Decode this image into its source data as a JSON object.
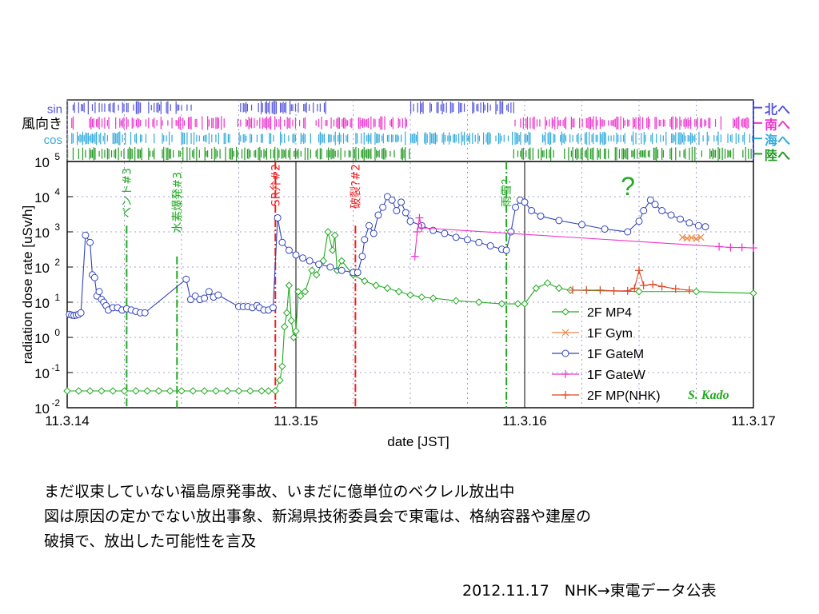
{
  "chart_data": {
    "type": "scatter",
    "xlabel": "date [JST]",
    "ylabel": "radiation dose rate [uSv/h]",
    "xlim": [
      "2011-03-14",
      "2011-03-17"
    ],
    "x_ticks": [
      "11.3.14",
      "11.3.15",
      "11.3.16",
      "11.3.17"
    ],
    "y_log": true,
    "ylim": [
      0.01,
      100000
    ],
    "y_ticks": [
      {
        "base": "10",
        "exp": "-2"
      },
      {
        "base": "10",
        "exp": "-1"
      },
      {
        "base": "10",
        "exp": "0"
      },
      {
        "base": "10",
        "exp": "1"
      },
      {
        "base": "10",
        "exp": "2"
      },
      {
        "base": "10",
        "exp": "3"
      },
      {
        "base": "10",
        "exp": "4"
      },
      {
        "base": "10",
        "exp": "5"
      }
    ],
    "legend_position": "bottom-right",
    "signature": "S. Kado",
    "question_mark": "?",
    "wind_panel": {
      "left_label": "風向き",
      "rows": [
        {
          "name": "sin",
          "right_label": "北へ",
          "color": "#5555dd"
        },
        {
          "name": "",
          "right_label": "南へ",
          "color": "#ee33cc"
        },
        {
          "name": "cos",
          "right_label": "海へ",
          "color": "#33aadd"
        },
        {
          "name": "",
          "right_label": "陸へ",
          "color": "#229922"
        }
      ]
    },
    "events": [
      {
        "label": "ベント#3",
        "day": 0.26,
        "color": "#22aa22"
      },
      {
        "label": "水素爆発#3",
        "day": 0.48,
        "color": "#22aa22"
      },
      {
        "label": "SR弁#2",
        "day": 0.91,
        "color": "#ee2222"
      },
      {
        "label": "破裂?#2",
        "day": 1.26,
        "color": "#ee2222"
      },
      {
        "label": "雨雪？",
        "day": 1.92,
        "color": "#22aa22"
      }
    ],
    "series": [
      {
        "name": "2F MP4",
        "color": "#22aa22",
        "marker": "diamond",
        "points": [
          [
            0.0,
            0.03
          ],
          [
            0.05,
            0.03
          ],
          [
            0.1,
            0.03
          ],
          [
            0.15,
            0.03
          ],
          [
            0.2,
            0.03
          ],
          [
            0.25,
            0.03
          ],
          [
            0.3,
            0.03
          ],
          [
            0.35,
            0.03
          ],
          [
            0.4,
            0.03
          ],
          [
            0.45,
            0.03
          ],
          [
            0.5,
            0.03
          ],
          [
            0.55,
            0.03
          ],
          [
            0.6,
            0.03
          ],
          [
            0.65,
            0.03
          ],
          [
            0.7,
            0.03
          ],
          [
            0.75,
            0.03
          ],
          [
            0.8,
            0.03
          ],
          [
            0.85,
            0.03
          ],
          [
            0.88,
            0.03
          ],
          [
            0.91,
            0.03
          ],
          [
            0.93,
            0.06
          ],
          [
            0.94,
            0.15
          ],
          [
            0.95,
            2
          ],
          [
            0.96,
            5
          ],
          [
            0.97,
            30
          ],
          [
            0.98,
            3
          ],
          [
            0.99,
            1
          ],
          [
            1.0,
            1.5
          ],
          [
            1.01,
            20
          ],
          [
            1.02,
            15
          ],
          [
            1.04,
            20
          ],
          [
            1.07,
            80
          ],
          [
            1.09,
            60
          ],
          [
            1.12,
            150
          ],
          [
            1.14,
            1000
          ],
          [
            1.16,
            300
          ],
          [
            1.17,
            800
          ],
          [
            1.18,
            80
          ],
          [
            1.2,
            150
          ],
          [
            1.25,
            60
          ],
          [
            1.3,
            40
          ],
          [
            1.35,
            30
          ],
          [
            1.4,
            25
          ],
          [
            1.45,
            20
          ],
          [
            1.5,
            16
          ],
          [
            1.55,
            14
          ],
          [
            1.6,
            13
          ],
          [
            1.7,
            11
          ],
          [
            1.8,
            10
          ],
          [
            1.9,
            9
          ],
          [
            1.97,
            9
          ],
          [
            2.0,
            9
          ],
          [
            2.05,
            25
          ],
          [
            2.1,
            35
          ],
          [
            2.15,
            25
          ],
          [
            2.2,
            22
          ],
          [
            2.5,
            20
          ],
          [
            2.75,
            20
          ],
          [
            3.0,
            18
          ]
        ]
      },
      {
        "name": "1F Gym",
        "color": "#ee8844",
        "marker": "x",
        "points": [
          [
            2.69,
            700
          ],
          [
            2.71,
            650
          ],
          [
            2.73,
            680
          ],
          [
            2.75,
            640
          ],
          [
            2.77,
            700
          ]
        ]
      },
      {
        "name": "1F GateM",
        "color": "#3344bb",
        "marker": "circle",
        "points": [
          [
            0.01,
            4.5
          ],
          [
            0.02,
            4.3
          ],
          [
            0.03,
            4.2
          ],
          [
            0.04,
            4.3
          ],
          [
            0.05,
            4.5
          ],
          [
            0.06,
            5
          ],
          [
            0.08,
            800
          ],
          [
            0.1,
            500
          ],
          [
            0.11,
            60
          ],
          [
            0.12,
            50
          ],
          [
            0.13,
            15
          ],
          [
            0.14,
            20
          ],
          [
            0.15,
            12
          ],
          [
            0.16,
            10
          ],
          [
            0.17,
            8
          ],
          [
            0.18,
            6
          ],
          [
            0.2,
            7
          ],
          [
            0.22,
            7
          ],
          [
            0.24,
            6
          ],
          [
            0.26,
            6.5
          ],
          [
            0.28,
            6
          ],
          [
            0.3,
            5.5
          ],
          [
            0.32,
            5
          ],
          [
            0.34,
            5
          ],
          [
            0.52,
            45
          ],
          [
            0.54,
            12
          ],
          [
            0.56,
            15
          ],
          [
            0.58,
            12
          ],
          [
            0.6,
            13
          ],
          [
            0.62,
            20
          ],
          [
            0.64,
            14
          ],
          [
            0.66,
            16
          ],
          [
            0.75,
            7.5
          ],
          [
            0.77,
            7.5
          ],
          [
            0.79,
            7.5
          ],
          [
            0.81,
            7
          ],
          [
            0.83,
            8
          ],
          [
            0.84,
            7
          ],
          [
            0.86,
            6
          ],
          [
            0.88,
            6
          ],
          [
            0.9,
            7
          ],
          [
            0.92,
            2500
          ],
          [
            0.94,
            500
          ],
          [
            0.97,
            300
          ],
          [
            1.0,
            220
          ],
          [
            1.03,
            180
          ],
          [
            1.06,
            150
          ],
          [
            1.1,
            120
          ],
          [
            1.15,
            100
          ],
          [
            1.2,
            80
          ],
          [
            1.25,
            70
          ],
          [
            1.27,
            70
          ],
          [
            1.29,
            200
          ],
          [
            1.3,
            600
          ],
          [
            1.32,
            1500
          ],
          [
            1.34,
            900
          ],
          [
            1.36,
            3000
          ],
          [
            1.38,
            5000
          ],
          [
            1.4,
            10000
          ],
          [
            1.42,
            8000
          ],
          [
            1.44,
            4000
          ],
          [
            1.46,
            7000
          ],
          [
            1.48,
            3500
          ],
          [
            1.5,
            2000
          ],
          [
            1.55,
            1500
          ],
          [
            1.6,
            1100
          ],
          [
            1.65,
            900
          ],
          [
            1.7,
            700
          ],
          [
            1.75,
            600
          ],
          [
            1.8,
            500
          ],
          [
            1.85,
            400
          ],
          [
            1.9,
            320
          ],
          [
            1.92,
            300
          ],
          [
            1.94,
            1000
          ],
          [
            1.96,
            5000
          ],
          [
            1.98,
            8000
          ],
          [
            2.0,
            7000
          ],
          [
            2.03,
            4000
          ],
          [
            2.07,
            2800
          ],
          [
            2.15,
            2100
          ],
          [
            2.25,
            1600
          ],
          [
            2.35,
            1200
          ],
          [
            2.45,
            1000
          ],
          [
            2.5,
            2000
          ],
          [
            2.52,
            4000
          ],
          [
            2.55,
            8000
          ],
          [
            2.57,
            6000
          ],
          [
            2.6,
            4000
          ],
          [
            2.64,
            3000
          ],
          [
            2.68,
            2300
          ],
          [
            2.72,
            1800
          ],
          [
            2.76,
            1500
          ],
          [
            2.79,
            1400
          ]
        ]
      },
      {
        "name": "1F GateW",
        "color": "#ee33cc",
        "marker": "plus",
        "points": [
          [
            1.52,
            200
          ],
          [
            1.53,
            1000
          ],
          [
            1.54,
            2500
          ],
          [
            1.55,
            1300
          ],
          [
            2.85,
            380
          ],
          [
            2.9,
            360
          ],
          [
            2.95,
            360
          ],
          [
            3.0,
            350
          ]
        ]
      },
      {
        "name": "2F MP(NHK)",
        "color": "#dd4422",
        "marker": "plus",
        "points": [
          [
            2.21,
            22
          ],
          [
            2.27,
            22
          ],
          [
            2.33,
            22
          ],
          [
            2.39,
            21
          ],
          [
            2.45,
            21
          ],
          [
            2.48,
            25
          ],
          [
            2.5,
            80
          ],
          [
            2.52,
            30
          ],
          [
            2.56,
            32
          ],
          [
            2.6,
            28
          ],
          [
            2.66,
            24
          ],
          [
            2.72,
            22
          ]
        ]
      }
    ]
  },
  "captions": {
    "line1": "まだ収束していない福島原発事故、いまだに億単位のベクレル放出中",
    "line2": "図は原因の定かでない放出事象、新潟県技術委員会で東電は、格納容器や建屋の",
    "line3": "破損で、放出した可能性を言及",
    "source": "2012.11.17　NHK→東電データ公表"
  },
  "colors": {
    "frame": "#000000",
    "grid": "#8888bb",
    "background": "#ffffff"
  }
}
